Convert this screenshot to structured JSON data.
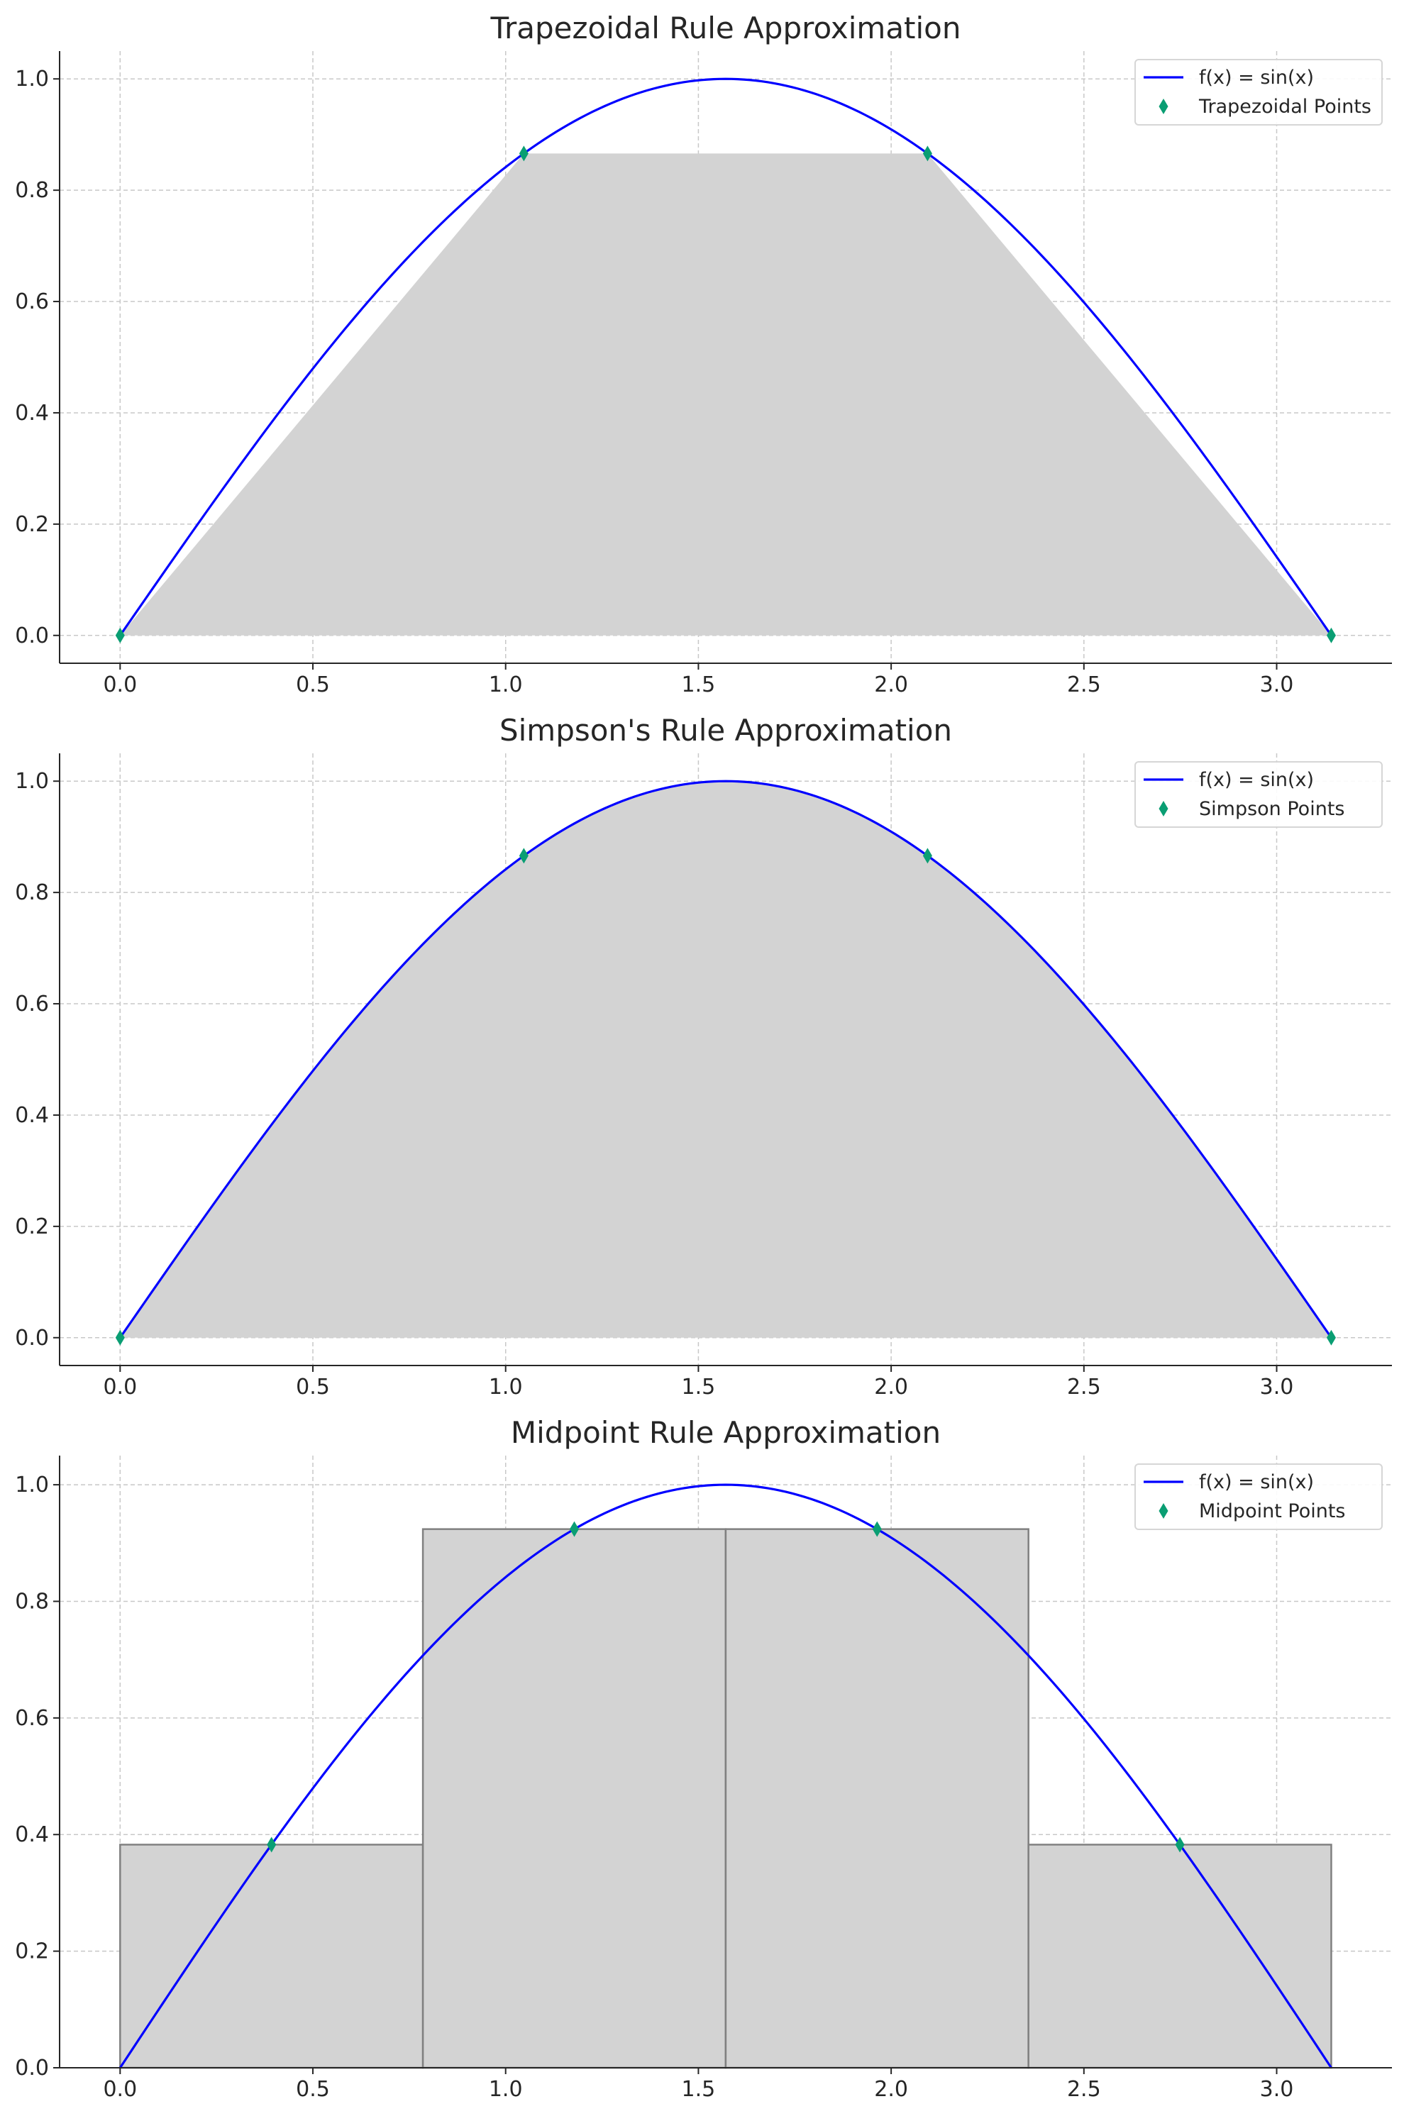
{
  "colors": {
    "curve": "#0000ff",
    "points": "#0a9e73",
    "fill": "#d3d3d3",
    "grid": "#c8c8c8",
    "axes": "#262626",
    "text": "#262626",
    "bar_edge": "#808080"
  },
  "chart_data": [
    {
      "type": "line",
      "title": "Trapezoidal Rule Approximation",
      "xlabel": "",
      "ylabel": "",
      "xlim": [
        -0.157,
        3.299
      ],
      "ylim": [
        -0.05,
        1.05
      ],
      "xticks": [
        0.0,
        0.5,
        1.0,
        1.5,
        2.0,
        2.5,
        3.0
      ],
      "xtick_labels": [
        "0.0",
        "0.5",
        "1.0",
        "1.5",
        "2.0",
        "2.5",
        "3.0"
      ],
      "yticks": [
        0.0,
        0.2,
        0.4,
        0.6,
        0.8,
        1.0
      ],
      "ytick_labels": [
        "0.0",
        "0.2",
        "0.4",
        "0.6",
        "0.8",
        "1.0"
      ],
      "grid": true,
      "legend_position": "top-right",
      "curve": {
        "name": "f(x) = sin(x)",
        "function": "sin(x)",
        "x_range": [
          0,
          3.14159
        ]
      },
      "points": {
        "name": "Trapezoidal Points",
        "x": [
          0.0,
          1.0472,
          2.0944,
          3.1416
        ],
        "y": [
          0.0,
          0.866,
          0.866,
          0.0
        ]
      },
      "approximation": "trapezoid"
    },
    {
      "type": "line",
      "title": "Simpson's Rule Approximation",
      "xlabel": "",
      "ylabel": "",
      "xlim": [
        -0.157,
        3.299
      ],
      "ylim": [
        -0.05,
        1.05
      ],
      "xticks": [
        0.0,
        0.5,
        1.0,
        1.5,
        2.0,
        2.5,
        3.0
      ],
      "xtick_labels": [
        "0.0",
        "0.5",
        "1.0",
        "1.5",
        "2.0",
        "2.5",
        "3.0"
      ],
      "yticks": [
        0.0,
        0.2,
        0.4,
        0.6,
        0.8,
        1.0
      ],
      "ytick_labels": [
        "0.0",
        "0.2",
        "0.4",
        "0.6",
        "0.8",
        "1.0"
      ],
      "grid": true,
      "legend_position": "top-right",
      "curve": {
        "name": "f(x) = sin(x)",
        "function": "sin(x)",
        "x_range": [
          0,
          3.14159
        ]
      },
      "points": {
        "name": "Simpson Points",
        "x": [
          0.0,
          1.0472,
          2.0944,
          3.1416
        ],
        "y": [
          0.0,
          0.866,
          0.866,
          0.0
        ]
      },
      "approximation": "simpson"
    },
    {
      "type": "line",
      "title": "Midpoint Rule Approximation",
      "xlabel": "",
      "ylabel": "",
      "xlim": [
        -0.157,
        3.299
      ],
      "ylim": [
        0.0,
        1.05
      ],
      "xticks": [
        0.0,
        0.5,
        1.0,
        1.5,
        2.0,
        2.5,
        3.0
      ],
      "xtick_labels": [
        "0.0",
        "0.5",
        "1.0",
        "1.5",
        "2.0",
        "2.5",
        "3.0"
      ],
      "yticks": [
        0.0,
        0.2,
        0.4,
        0.6,
        0.8,
        1.0
      ],
      "ytick_labels": [
        "0.0",
        "0.2",
        "0.4",
        "0.6",
        "0.8",
        "1.0"
      ],
      "grid": true,
      "legend_position": "top-right",
      "curve": {
        "name": "f(x) = sin(x)",
        "function": "sin(x)",
        "x_range": [
          0,
          3.14159
        ]
      },
      "points": {
        "name": "Midpoint Points",
        "x": [
          0.3927,
          1.1781,
          1.9635,
          2.7489
        ],
        "y": [
          0.3827,
          0.9239,
          0.9239,
          0.3827
        ]
      },
      "bars": {
        "x_left": [
          0.0,
          0.7854,
          1.5708,
          2.3562
        ],
        "width": 0.7854,
        "heights": [
          0.3827,
          0.9239,
          0.9239,
          0.3827
        ]
      },
      "approximation": "midpoint"
    }
  ]
}
